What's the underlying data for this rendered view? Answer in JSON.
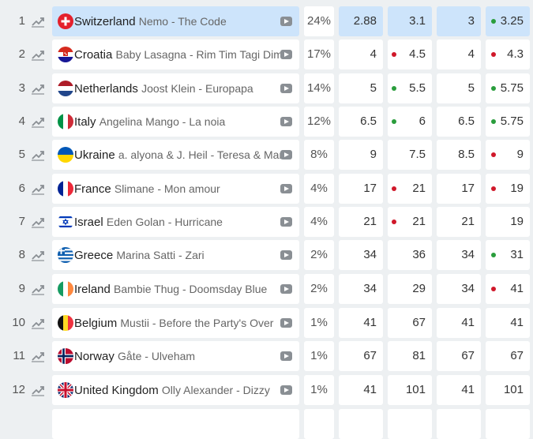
{
  "colors": {
    "up": "#2a9d3c",
    "down": "#d0182a",
    "highlight": "#cde4fb"
  },
  "rows": [
    {
      "rank": "1",
      "flag": "switzerland-flag",
      "country": "Switzerland",
      "song": "Nemo - The Code",
      "pct": "24%",
      "odds": [
        {
          "value": "2.88",
          "dot": ""
        },
        {
          "value": "3.1",
          "dot": ""
        },
        {
          "value": "3",
          "dot": ""
        },
        {
          "value": "3.25",
          "dot": "up"
        }
      ],
      "highlight": true
    },
    {
      "rank": "2",
      "flag": "croatia-flag",
      "country": "Croatia",
      "song": "Baby Lasagna - Rim Tim Tagi Dim",
      "pct": "17%",
      "odds": [
        {
          "value": "4",
          "dot": ""
        },
        {
          "value": "4.5",
          "dot": "down"
        },
        {
          "value": "4",
          "dot": ""
        },
        {
          "value": "4.3",
          "dot": "down"
        }
      ]
    },
    {
      "rank": "3",
      "flag": "netherlands-flag",
      "country": "Netherlands",
      "song": "Joost Klein - Europapa",
      "pct": "14%",
      "odds": [
        {
          "value": "5",
          "dot": ""
        },
        {
          "value": "5.5",
          "dot": "up"
        },
        {
          "value": "5",
          "dot": ""
        },
        {
          "value": "5.75",
          "dot": "up"
        }
      ]
    },
    {
      "rank": "4",
      "flag": "italy-flag",
      "country": "Italy",
      "song": "Angelina Mango - La noia",
      "pct": "12%",
      "odds": [
        {
          "value": "6.5",
          "dot": ""
        },
        {
          "value": "6",
          "dot": "up"
        },
        {
          "value": "6.5",
          "dot": ""
        },
        {
          "value": "5.75",
          "dot": "up"
        }
      ]
    },
    {
      "rank": "5",
      "flag": "ukraine-flag",
      "country": "Ukraine",
      "song": "a. alyona & J. Heil - Teresa & Maria",
      "pct": "8%",
      "odds": [
        {
          "value": "9",
          "dot": ""
        },
        {
          "value": "7.5",
          "dot": ""
        },
        {
          "value": "8.5",
          "dot": ""
        },
        {
          "value": "9",
          "dot": "down"
        }
      ]
    },
    {
      "rank": "6",
      "flag": "france-flag",
      "country": "France",
      "song": "Slimane - Mon amour",
      "pct": "4%",
      "odds": [
        {
          "value": "17",
          "dot": ""
        },
        {
          "value": "21",
          "dot": "down"
        },
        {
          "value": "17",
          "dot": ""
        },
        {
          "value": "19",
          "dot": "down"
        }
      ]
    },
    {
      "rank": "7",
      "flag": "israel-flag",
      "country": "Israel",
      "song": "Eden Golan - Hurricane",
      "pct": "4%",
      "odds": [
        {
          "value": "21",
          "dot": ""
        },
        {
          "value": "21",
          "dot": "down"
        },
        {
          "value": "21",
          "dot": ""
        },
        {
          "value": "19",
          "dot": ""
        }
      ]
    },
    {
      "rank": "8",
      "flag": "greece-flag",
      "country": "Greece",
      "song": "Marina Satti - Zari",
      "pct": "2%",
      "odds": [
        {
          "value": "34",
          "dot": ""
        },
        {
          "value": "36",
          "dot": ""
        },
        {
          "value": "34",
          "dot": ""
        },
        {
          "value": "31",
          "dot": "up"
        }
      ]
    },
    {
      "rank": "9",
      "flag": "ireland-flag",
      "country": "Ireland",
      "song": "Bambie Thug - Doomsday Blue",
      "pct": "2%",
      "odds": [
        {
          "value": "34",
          "dot": ""
        },
        {
          "value": "29",
          "dot": ""
        },
        {
          "value": "34",
          "dot": ""
        },
        {
          "value": "41",
          "dot": "down"
        }
      ]
    },
    {
      "rank": "10",
      "flag": "belgium-flag",
      "country": "Belgium",
      "song": "Mustii - Before the Party's Over",
      "pct": "1%",
      "odds": [
        {
          "value": "41",
          "dot": ""
        },
        {
          "value": "67",
          "dot": ""
        },
        {
          "value": "41",
          "dot": ""
        },
        {
          "value": "41",
          "dot": ""
        }
      ]
    },
    {
      "rank": "11",
      "flag": "norway-flag",
      "country": "Norway",
      "song": "Gåte - Ulveham",
      "pct": "1%",
      "odds": [
        {
          "value": "67",
          "dot": ""
        },
        {
          "value": "81",
          "dot": ""
        },
        {
          "value": "67",
          "dot": ""
        },
        {
          "value": "67",
          "dot": ""
        }
      ]
    },
    {
      "rank": "12",
      "flag": "uk-flag",
      "country": "United Kingdom",
      "song": "Olly Alexander - Dizzy",
      "pct": "1%",
      "odds": [
        {
          "value": "41",
          "dot": ""
        },
        {
          "value": "101",
          "dot": ""
        },
        {
          "value": "41",
          "dot": ""
        },
        {
          "value": "101",
          "dot": ""
        }
      ]
    },
    {
      "rank": "",
      "flag": "",
      "country": "",
      "song": "",
      "pct": "",
      "odds": [
        {
          "value": "",
          "dot": ""
        },
        {
          "value": "",
          "dot": ""
        },
        {
          "value": "",
          "dot": ""
        },
        {
          "value": "",
          "dot": ""
        }
      ]
    }
  ]
}
